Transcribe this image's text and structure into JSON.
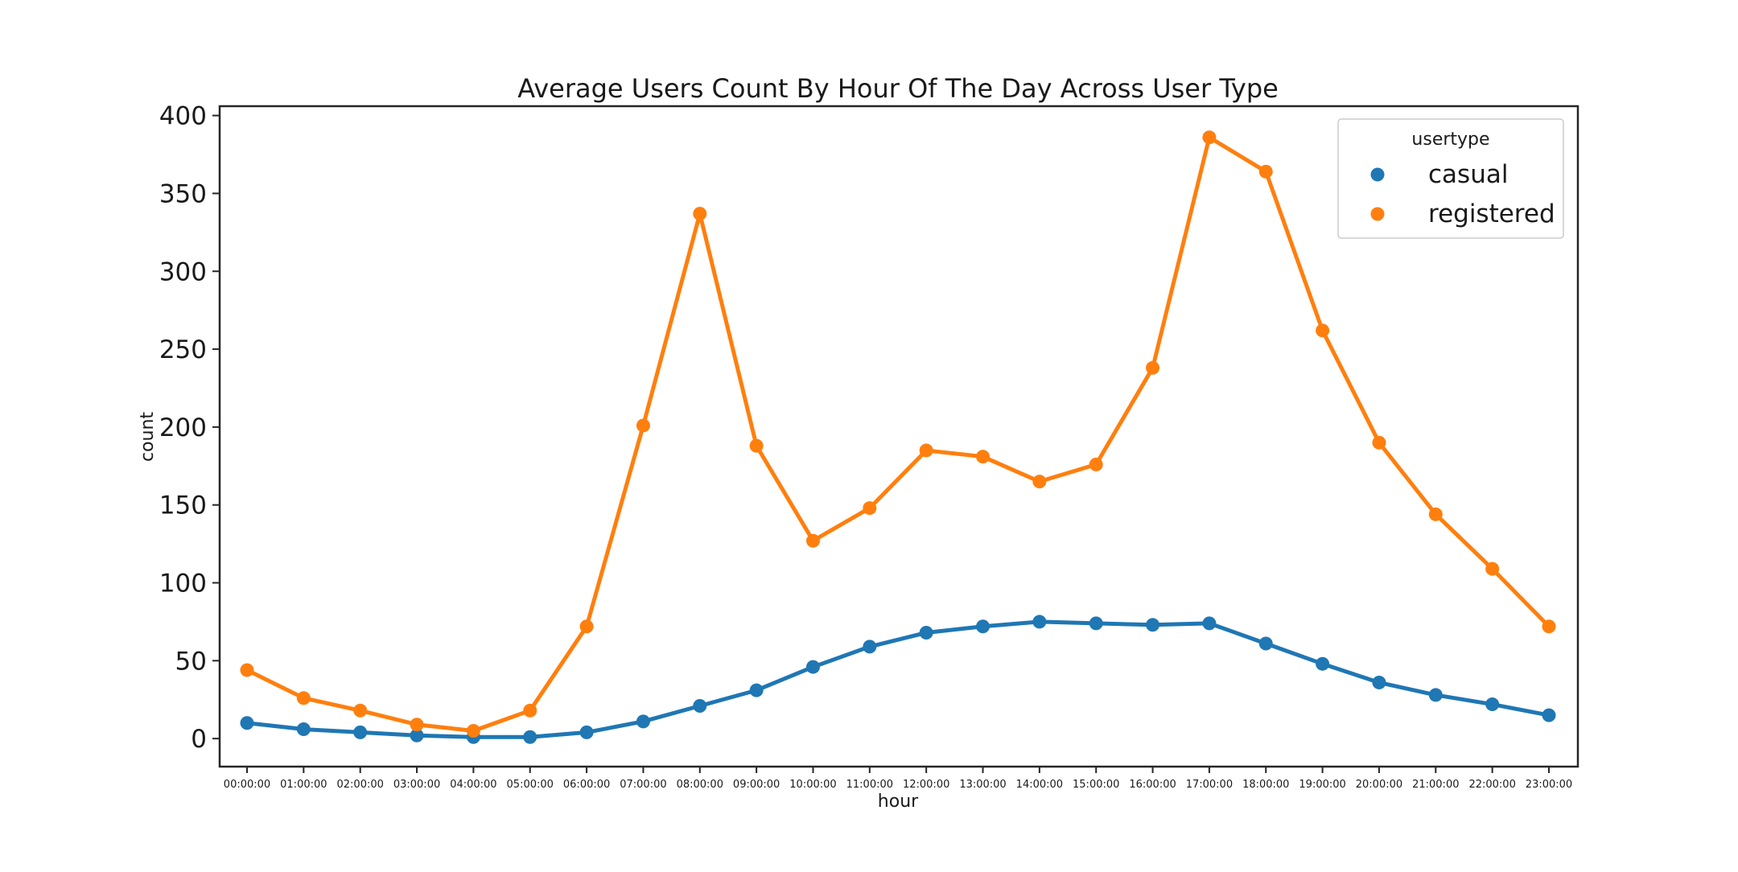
{
  "chart_data": {
    "type": "line",
    "title": "Average Users Count By Hour Of The Day Across User Type",
    "xlabel": "hour",
    "ylabel": "count",
    "ylim": [
      -18,
      406
    ],
    "yticks": [
      0,
      50,
      100,
      150,
      200,
      250,
      300,
      350,
      400
    ],
    "grid": false,
    "legend": {
      "title": "usertype",
      "placement": "top-right"
    },
    "categories": [
      "00:00:00",
      "01:00:00",
      "02:00:00",
      "03:00:00",
      "04:00:00",
      "05:00:00",
      "06:00:00",
      "07:00:00",
      "08:00:00",
      "09:00:00",
      "10:00:00",
      "11:00:00",
      "12:00:00",
      "13:00:00",
      "14:00:00",
      "15:00:00",
      "16:00:00",
      "17:00:00",
      "18:00:00",
      "19:00:00",
      "20:00:00",
      "21:00:00",
      "22:00:00",
      "23:00:00"
    ],
    "series": [
      {
        "name": "casual",
        "color": "#1f77b4",
        "values": [
          10,
          6,
          4,
          2,
          1,
          1,
          4,
          11,
          21,
          31,
          46,
          59,
          68,
          72,
          75,
          74,
          73,
          74,
          61,
          48,
          36,
          28,
          22,
          15
        ]
      },
      {
        "name": "registered",
        "color": "#ff7f0e",
        "values": [
          44,
          26,
          18,
          9,
          5,
          18,
          72,
          201,
          337,
          188,
          127,
          148,
          185,
          181,
          165,
          176,
          238,
          386,
          364,
          262,
          190,
          144,
          109,
          72
        ]
      }
    ]
  }
}
